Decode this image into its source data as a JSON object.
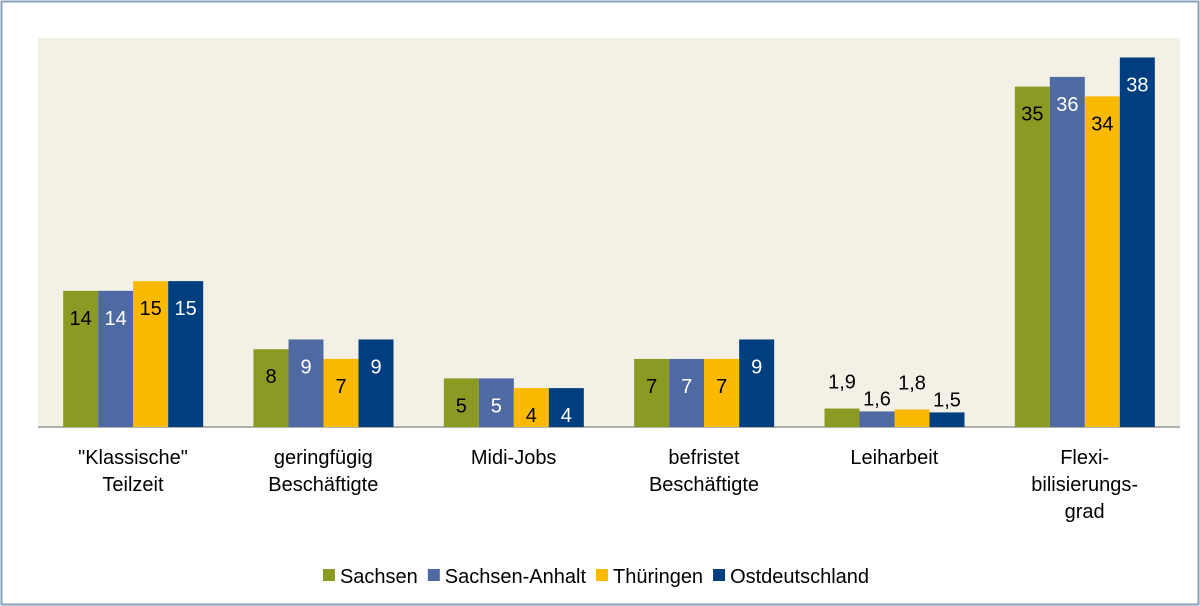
{
  "chart_data": {
    "type": "bar",
    "categories": [
      "\"Klassische\"\nTeilzeit",
      "geringfügig\nBeschäftigte",
      "Midi-Jobs",
      "befristet\nBeschäftigte",
      "Leiharbeit",
      "Flexi-\nbilisierungs-\ngrad"
    ],
    "series": [
      {
        "name": "Sachsen",
        "color": "#8b9a23",
        "values": [
          14,
          8,
          5,
          7,
          1.9,
          35
        ],
        "value_labels": [
          "14",
          "8",
          "5",
          "7",
          "1,9",
          "35"
        ]
      },
      {
        "name": "Sachsen-Anhalt",
        "color": "#4f6aa3",
        "values": [
          14,
          9,
          5,
          7,
          1.6,
          36
        ],
        "value_labels": [
          "14",
          "9",
          "5",
          "7",
          "1,6",
          "36"
        ]
      },
      {
        "name": "Thüringen",
        "color": "#fbb900",
        "values": [
          15,
          7,
          4,
          7,
          1.8,
          34
        ],
        "value_labels": [
          "15",
          "7",
          "4",
          "7",
          "1,8",
          "34"
        ]
      },
      {
        "name": "Ostdeutschland",
        "color": "#003f7f",
        "values": [
          15,
          9,
          4,
          9,
          1.5,
          38
        ],
        "value_labels": [
          "15",
          "9",
          "4",
          "9",
          "1,5",
          "38"
        ]
      }
    ],
    "ylim": [
      0,
      40
    ],
    "legend": "bottom"
  }
}
